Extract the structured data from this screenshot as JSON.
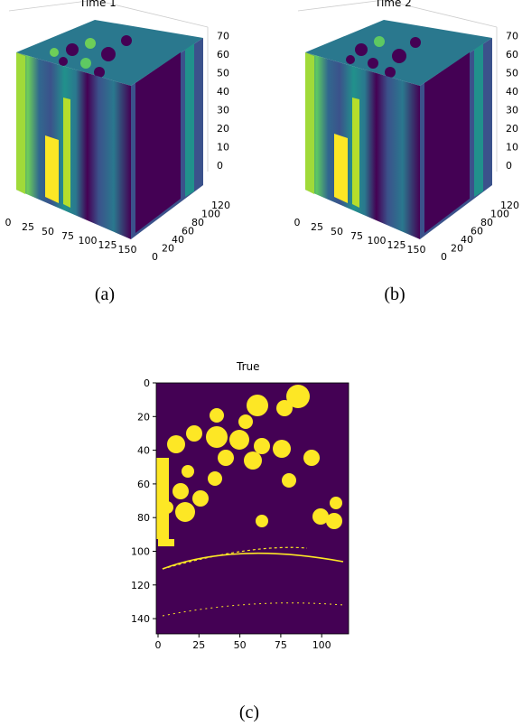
{
  "figure": {
    "panel_a": {
      "title": "Time 1",
      "caption": "(a)",
      "x_ticks": [
        "0",
        "25",
        "50",
        "75",
        "100",
        "125",
        "150"
      ],
      "y_ticks": [
        "0",
        "20",
        "40",
        "60",
        "80",
        "100",
        "120"
      ],
      "z_ticks": [
        "0",
        "10",
        "20",
        "30",
        "40",
        "50",
        "60",
        "70"
      ]
    },
    "panel_b": {
      "title": "Time 2",
      "caption": "(b)",
      "x_ticks": [
        "0",
        "25",
        "50",
        "75",
        "100",
        "125",
        "150"
      ],
      "y_ticks": [
        "0",
        "20",
        "40",
        "60",
        "80",
        "100",
        "120"
      ],
      "z_ticks": [
        "0",
        "10",
        "20",
        "30",
        "40",
        "50",
        "60",
        "70"
      ]
    },
    "panel_c": {
      "title": "True",
      "caption": "(c)",
      "x_ticks": [
        "0",
        "25",
        "50",
        "75",
        "100"
      ],
      "y_ticks": [
        "0",
        "20",
        "40",
        "60",
        "80",
        "100",
        "120",
        "140"
      ]
    }
  },
  "colors": {
    "dark": "#440154",
    "mid": "#31688e",
    "teal": "#21918c",
    "green": "#5ec962",
    "yellow": "#fde725"
  }
}
